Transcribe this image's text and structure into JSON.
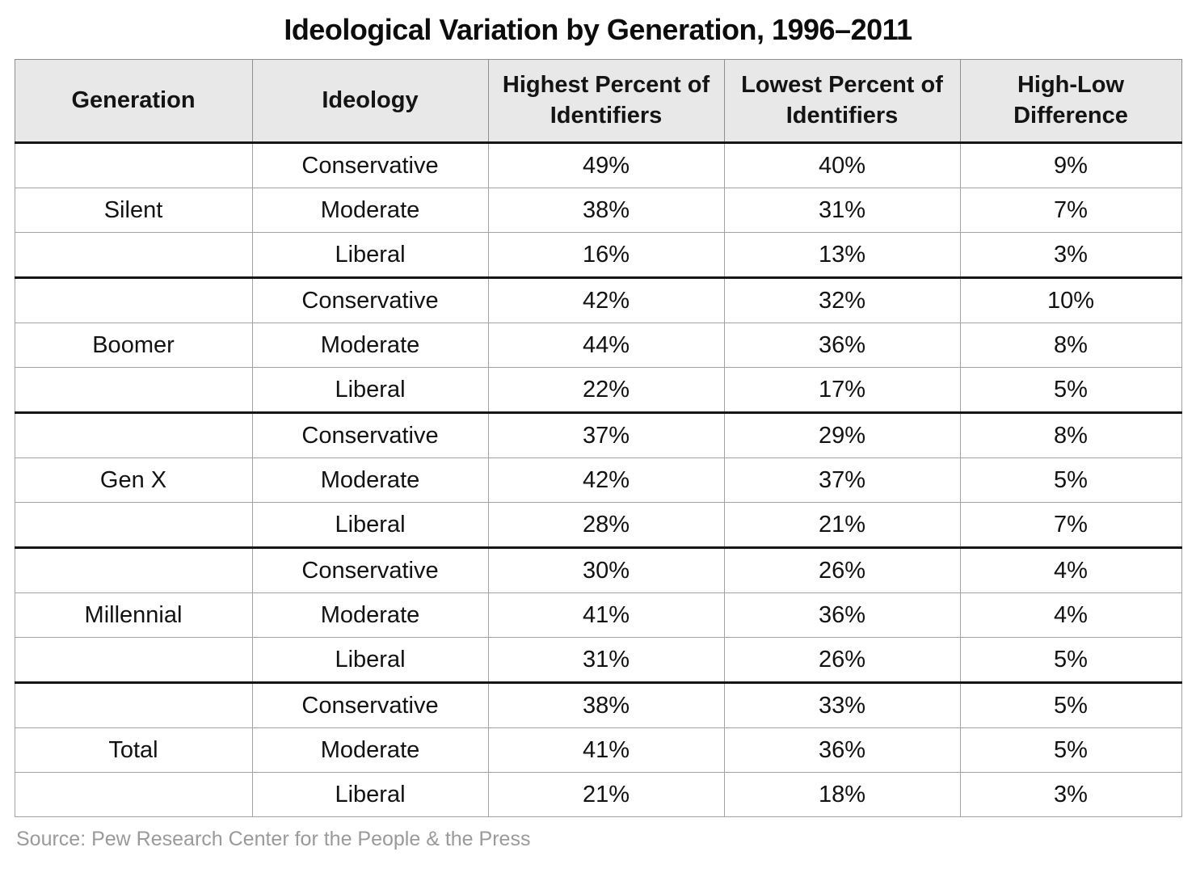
{
  "title": "Ideological Variation by Generation, 1996–2011",
  "source": "Source: Pew Research Center for the People & the Press",
  "table": {
    "headers": {
      "generation": "Generation",
      "ideology": "Ideology",
      "highest": "Highest Percent of Identifiers",
      "lowest": "Lowest Percent of Identifiers",
      "diff": "High-Low Difference"
    },
    "groups": [
      {
        "generation": "Silent",
        "rows": [
          {
            "ideology": "Conservative",
            "highest": "49%",
            "lowest": "40%",
            "diff": "9%"
          },
          {
            "ideology": "Moderate",
            "highest": "38%",
            "lowest": "31%",
            "diff": "7%"
          },
          {
            "ideology": "Liberal",
            "highest": "16%",
            "lowest": "13%",
            "diff": "3%"
          }
        ]
      },
      {
        "generation": "Boomer",
        "rows": [
          {
            "ideology": "Conservative",
            "highest": "42%",
            "lowest": "32%",
            "diff": "10%"
          },
          {
            "ideology": "Moderate",
            "highest": "44%",
            "lowest": "36%",
            "diff": "8%"
          },
          {
            "ideology": "Liberal",
            "highest": "22%",
            "lowest": "17%",
            "diff": "5%"
          }
        ]
      },
      {
        "generation": "Gen X",
        "rows": [
          {
            "ideology": "Conservative",
            "highest": "37%",
            "lowest": "29%",
            "diff": "8%"
          },
          {
            "ideology": "Moderate",
            "highest": "42%",
            "lowest": "37%",
            "diff": "5%"
          },
          {
            "ideology": "Liberal",
            "highest": "28%",
            "lowest": "21%",
            "diff": "7%"
          }
        ]
      },
      {
        "generation": "Millennial",
        "rows": [
          {
            "ideology": "Conservative",
            "highest": "30%",
            "lowest": "26%",
            "diff": "4%"
          },
          {
            "ideology": "Moderate",
            "highest": "41%",
            "lowest": "36%",
            "diff": "4%"
          },
          {
            "ideology": "Liberal",
            "highest": "31%",
            "lowest": "26%",
            "diff": "5%"
          }
        ]
      },
      {
        "generation": "Total",
        "rows": [
          {
            "ideology": "Conservative",
            "highest": "38%",
            "lowest": "33%",
            "diff": "5%"
          },
          {
            "ideology": "Moderate",
            "highest": "41%",
            "lowest": "36%",
            "diff": "5%"
          },
          {
            "ideology": "Liberal",
            "highest": "21%",
            "lowest": "18%",
            "diff": "3%"
          }
        ]
      }
    ]
  },
  "colors": {
    "header_bg": "#e8e8e8",
    "thick_rule": "#161616",
    "thin_rule": "#a2a2a2",
    "source_text": "#9a9a9a"
  },
  "chart_data": {
    "type": "table",
    "title": "Ideological Variation by Generation, 1996–2011",
    "columns": [
      "Generation",
      "Ideology",
      "Highest Percent of Identifiers",
      "Lowest Percent of Identifiers",
      "High-Low Difference"
    ],
    "rows": [
      [
        "Silent",
        "Conservative",
        49,
        40,
        9
      ],
      [
        "Silent",
        "Moderate",
        38,
        31,
        7
      ],
      [
        "Silent",
        "Liberal",
        16,
        13,
        3
      ],
      [
        "Boomer",
        "Conservative",
        42,
        32,
        10
      ],
      [
        "Boomer",
        "Moderate",
        44,
        36,
        8
      ],
      [
        "Boomer",
        "Liberal",
        22,
        17,
        5
      ],
      [
        "Gen X",
        "Conservative",
        37,
        29,
        8
      ],
      [
        "Gen X",
        "Moderate",
        42,
        37,
        5
      ],
      [
        "Gen X",
        "Liberal",
        28,
        21,
        7
      ],
      [
        "Millennial",
        "Conservative",
        30,
        26,
        4
      ],
      [
        "Millennial",
        "Moderate",
        41,
        36,
        4
      ],
      [
        "Millennial",
        "Liberal",
        31,
        26,
        5
      ],
      [
        "Total",
        "Conservative",
        38,
        33,
        5
      ],
      [
        "Total",
        "Moderate",
        41,
        36,
        5
      ],
      [
        "Total",
        "Liberal",
        21,
        18,
        3
      ]
    ],
    "units": "percent",
    "source": "Pew Research Center for the People & the Press"
  }
}
